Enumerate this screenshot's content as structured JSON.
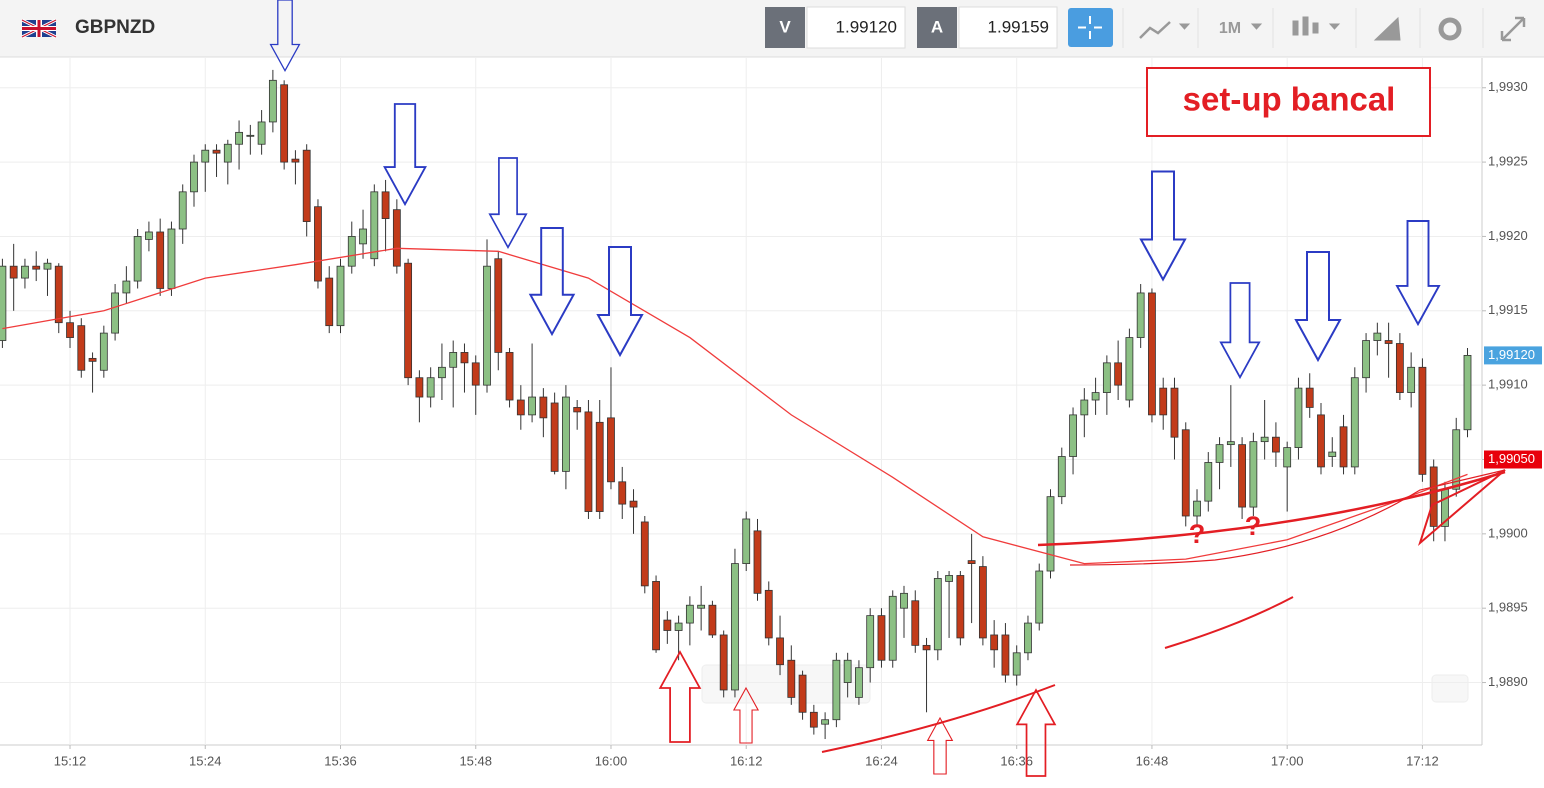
{
  "header": {
    "symbol": "GBPNZD",
    "bid_label": "V",
    "bid": "1.99120",
    "ask_label": "A",
    "ask": "1.99159",
    "timeframe": "1M"
  },
  "chart_data": {
    "type": "candlestick",
    "x": [
      "15:06",
      "15:07",
      "15:08",
      "15:09",
      "15:10",
      "15:11",
      "15:12",
      "15:13",
      "15:14",
      "15:15",
      "15:16",
      "15:17",
      "15:18",
      "15:19",
      "15:20",
      "15:21",
      "15:22",
      "15:23",
      "15:24",
      "15:25",
      "15:26",
      "15:27",
      "15:28",
      "15:29",
      "15:30",
      "15:31",
      "15:32",
      "15:33",
      "15:34",
      "15:35",
      "15:36",
      "15:37",
      "15:38",
      "15:39",
      "15:40",
      "15:41",
      "15:42",
      "15:43",
      "15:44",
      "15:45",
      "15:46",
      "15:47",
      "15:48",
      "15:49",
      "15:50",
      "15:51",
      "15:52",
      "15:53",
      "15:54",
      "15:55",
      "15:56",
      "15:57",
      "15:58",
      "15:59",
      "16:00",
      "16:01",
      "16:02",
      "16:03",
      "16:04",
      "16:05",
      "16:06",
      "16:07",
      "16:08",
      "16:09",
      "16:10",
      "16:11",
      "16:12",
      "16:13",
      "16:14",
      "16:15",
      "16:16",
      "16:17",
      "16:18",
      "16:19",
      "16:20",
      "16:21",
      "16:22",
      "16:23",
      "16:24",
      "16:25",
      "16:26",
      "16:27",
      "16:28",
      "16:29",
      "16:30",
      "16:31",
      "16:32",
      "16:33",
      "16:34",
      "16:35",
      "16:36",
      "16:37",
      "16:38",
      "16:39",
      "16:40",
      "16:41",
      "16:42",
      "16:43",
      "16:44",
      "16:45",
      "16:46",
      "16:47",
      "16:48",
      "16:49",
      "16:50",
      "16:51",
      "16:52",
      "16:53",
      "16:54",
      "16:55",
      "16:56",
      "16:57",
      "16:58",
      "16:59",
      "17:00",
      "17:01",
      "17:02",
      "17:03",
      "17:04",
      "17:05",
      "17:06",
      "17:07",
      "17:08",
      "17:09",
      "17:10",
      "17:11",
      "17:12",
      "17:13",
      "17:14",
      "17:15",
      "17:16"
    ],
    "ohlc": [
      [
        1.9913,
        1.99185,
        1.99125,
        1.9918
      ],
      [
        1.9918,
        1.99195,
        1.9915,
        1.99172
      ],
      [
        1.99172,
        1.99185,
        1.99165,
        1.9918
      ],
      [
        1.9918,
        1.9919,
        1.9917,
        1.99178
      ],
      [
        1.99178,
        1.99185,
        1.9916,
        1.99182
      ],
      [
        1.9918,
        1.99182,
        1.99135,
        1.99142
      ],
      [
        1.99142,
        1.9915,
        1.99125,
        1.99132
      ],
      [
        1.9914,
        1.99145,
        1.99105,
        1.9911
      ],
      [
        1.99118,
        1.99122,
        1.99095,
        1.99116
      ],
      [
        1.9911,
        1.9914,
        1.99105,
        1.99135
      ],
      [
        1.99135,
        1.99168,
        1.9913,
        1.99162
      ],
      [
        1.99162,
        1.9918,
        1.99155,
        1.9917
      ],
      [
        1.9917,
        1.99205,
        1.99165,
        1.992
      ],
      [
        1.99198,
        1.9921,
        1.9919,
        1.99203
      ],
      [
        1.99203,
        1.99212,
        1.9916,
        1.99165
      ],
      [
        1.99165,
        1.9921,
        1.9916,
        1.99205
      ],
      [
        1.99205,
        1.99235,
        1.99195,
        1.9923
      ],
      [
        1.9923,
        1.99255,
        1.9922,
        1.9925
      ],
      [
        1.9925,
        1.99262,
        1.9923,
        1.99258
      ],
      [
        1.99258,
        1.99262,
        1.9924,
        1.99256
      ],
      [
        1.9925,
        1.99265,
        1.99235,
        1.99262
      ],
      [
        1.99262,
        1.99278,
        1.99245,
        1.9927
      ],
      [
        1.99268,
        1.99275,
        1.99255,
        1.99268
      ],
      [
        1.99262,
        1.99285,
        1.99255,
        1.99277
      ],
      [
        1.99277,
        1.99312,
        1.9927,
        1.99305
      ],
      [
        1.99302,
        1.99305,
        1.99245,
        1.9925
      ],
      [
        1.99252,
        1.99258,
        1.99235,
        1.9925
      ],
      [
        1.99258,
        1.99262,
        1.992,
        1.9921
      ],
      [
        1.9922,
        1.99225,
        1.99165,
        1.9917
      ],
      [
        1.99172,
        1.9918,
        1.99135,
        1.9914
      ],
      [
        1.9914,
        1.99185,
        1.99135,
        1.9918
      ],
      [
        1.9918,
        1.9921,
        1.99175,
        1.992
      ],
      [
        1.99195,
        1.99218,
        1.99185,
        1.99205
      ],
      [
        1.99185,
        1.99235,
        1.9918,
        1.9923
      ],
      [
        1.9923,
        1.99238,
        1.9919,
        1.99212
      ],
      [
        1.99218,
        1.99225,
        1.99175,
        1.9918
      ],
      [
        1.99182,
        1.99185,
        1.991,
        1.99105
      ],
      [
        1.99105,
        1.9911,
        1.99075,
        1.99092
      ],
      [
        1.99092,
        1.99112,
        1.99085,
        1.99105
      ],
      [
        1.99105,
        1.99128,
        1.9909,
        1.99112
      ],
      [
        1.99112,
        1.9913,
        1.99085,
        1.99122
      ],
      [
        1.99122,
        1.99128,
        1.99095,
        1.99115
      ],
      [
        1.99115,
        1.9912,
        1.9908,
        1.991
      ],
      [
        1.991,
        1.99198,
        1.99095,
        1.9918
      ],
      [
        1.99185,
        1.9919,
        1.9911,
        1.99122
      ],
      [
        1.99122,
        1.99125,
        1.99085,
        1.9909
      ],
      [
        1.9909,
        1.991,
        1.9907,
        1.9908
      ],
      [
        1.9908,
        1.99128,
        1.99075,
        1.99092
      ],
      [
        1.99092,
        1.99098,
        1.99065,
        1.99078
      ],
      [
        1.99088,
        1.99095,
        1.9904,
        1.99042
      ],
      [
        1.99042,
        1.991,
        1.9903,
        1.99092
      ],
      [
        1.99085,
        1.9909,
        1.9907,
        1.99082
      ],
      [
        1.99082,
        1.9909,
        1.9901,
        1.99015
      ],
      [
        1.99075,
        1.9909,
        1.9901,
        1.99015
      ],
      [
        1.99078,
        1.99112,
        1.9903,
        1.99035
      ],
      [
        1.99035,
        1.99045,
        1.9901,
        1.9902
      ],
      [
        1.99022,
        1.9903,
        1.99,
        1.99018
      ],
      [
        1.99008,
        1.99012,
        1.9896,
        1.98965
      ],
      [
        1.98968,
        1.98972,
        1.9892,
        1.98922
      ],
      [
        1.98942,
        1.98948,
        1.98926,
        1.98935
      ],
      [
        1.98935,
        1.98945,
        1.98915,
        1.9894
      ],
      [
        1.9894,
        1.98958,
        1.98925,
        1.98952
      ],
      [
        1.9895,
        1.98965,
        1.98935,
        1.98952
      ],
      [
        1.98952,
        1.98955,
        1.9893,
        1.98932
      ],
      [
        1.98932,
        1.98935,
        1.9889,
        1.98895
      ],
      [
        1.98895,
        1.9899,
        1.9889,
        1.9898
      ],
      [
        1.9898,
        1.99015,
        1.98975,
        1.9901
      ],
      [
        1.99002,
        1.9901,
        1.98955,
        1.9896
      ],
      [
        1.98962,
        1.98968,
        1.98925,
        1.9893
      ],
      [
        1.9893,
        1.98945,
        1.98905,
        1.98912
      ],
      [
        1.98915,
        1.98925,
        1.98885,
        1.9889
      ],
      [
        1.98905,
        1.98908,
        1.98875,
        1.9888
      ],
      [
        1.9888,
        1.98885,
        1.98865,
        1.9887
      ],
      [
        1.98872,
        1.9888,
        1.98862,
        1.98875
      ],
      [
        1.98875,
        1.9892,
        1.9887,
        1.98915
      ],
      [
        1.989,
        1.9892,
        1.9889,
        1.98915
      ],
      [
        1.9889,
        1.98915,
        1.98885,
        1.9891
      ],
      [
        1.9891,
        1.9895,
        1.989,
        1.98945
      ],
      [
        1.98945,
        1.9895,
        1.9891,
        1.98915
      ],
      [
        1.98915,
        1.98962,
        1.9891,
        1.98958
      ],
      [
        1.9895,
        1.98965,
        1.9893,
        1.9896
      ],
      [
        1.98955,
        1.98962,
        1.9892,
        1.98925
      ],
      [
        1.98925,
        1.9893,
        1.9888,
        1.98922
      ],
      [
        1.98922,
        1.98975,
        1.98915,
        1.9897
      ],
      [
        1.98968,
        1.98975,
        1.9893,
        1.98972
      ],
      [
        1.98972,
        1.98975,
        1.98925,
        1.9893
      ],
      [
        1.98982,
        1.99,
        1.9894,
        1.9898
      ],
      [
        1.98978,
        1.98985,
        1.98925,
        1.9893
      ],
      [
        1.98932,
        1.98942,
        1.9891,
        1.98922
      ],
      [
        1.98932,
        1.9894,
        1.989,
        1.98905
      ],
      [
        1.98905,
        1.98925,
        1.98898,
        1.9892
      ],
      [
        1.9892,
        1.98945,
        1.98915,
        1.9894
      ],
      [
        1.9894,
        1.9898,
        1.98935,
        1.98975
      ],
      [
        1.98975,
        1.9903,
        1.9897,
        1.99025
      ],
      [
        1.99025,
        1.99058,
        1.9902,
        1.99052
      ],
      [
        1.99052,
        1.99085,
        1.9904,
        1.9908
      ],
      [
        1.9908,
        1.99098,
        1.99065,
        1.9909
      ],
      [
        1.9909,
        1.99105,
        1.9908,
        1.99095
      ],
      [
        1.99095,
        1.9912,
        1.9908,
        1.99115
      ],
      [
        1.99115,
        1.9913,
        1.9909,
        1.991
      ],
      [
        1.9909,
        1.99138,
        1.99085,
        1.99132
      ],
      [
        1.99132,
        1.99168,
        1.99125,
        1.99162
      ],
      [
        1.99162,
        1.99165,
        1.99075,
        1.9908
      ],
      [
        1.99098,
        1.99105,
        1.9907,
        1.9908
      ],
      [
        1.99098,
        1.99105,
        1.9905,
        1.99065
      ],
      [
        1.9907,
        1.99075,
        1.99005,
        1.99012
      ],
      [
        1.99012,
        1.9903,
        1.99005,
        1.99022
      ],
      [
        1.99022,
        1.99055,
        1.99015,
        1.99048
      ],
      [
        1.99048,
        1.99065,
        1.9903,
        1.9906
      ],
      [
        1.9906,
        1.991,
        1.99045,
        1.99062
      ],
      [
        1.9906,
        1.99065,
        1.9901,
        1.99018
      ],
      [
        1.99018,
        1.99068,
        1.99012,
        1.99062
      ],
      [
        1.99062,
        1.9909,
        1.9905,
        1.99065
      ],
      [
        1.99065,
        1.99075,
        1.99045,
        1.99055
      ],
      [
        1.99045,
        1.99062,
        1.99015,
        1.99058
      ],
      [
        1.99058,
        1.99105,
        1.9905,
        1.99098
      ],
      [
        1.99098,
        1.99108,
        1.99078,
        1.99085
      ],
      [
        1.9908,
        1.99088,
        1.9904,
        1.99045
      ],
      [
        1.99052,
        1.99065,
        1.99045,
        1.99055
      ],
      [
        1.99072,
        1.9908,
        1.9904,
        1.99045
      ],
      [
        1.99045,
        1.99112,
        1.9904,
        1.99105
      ],
      [
        1.99105,
        1.99135,
        1.99095,
        1.9913
      ],
      [
        1.9913,
        1.99142,
        1.9912,
        1.99135
      ],
      [
        1.9913,
        1.99142,
        1.99105,
        1.99128
      ],
      [
        1.99128,
        1.99135,
        1.9909,
        1.99095
      ],
      [
        1.99095,
        1.99122,
        1.99085,
        1.99112
      ],
      [
        1.99112,
        1.99118,
        1.99035,
        1.9904
      ],
      [
        1.99045,
        1.9905,
        1.98995,
        1.99005
      ],
      [
        1.99005,
        1.99035,
        1.98995,
        1.9903
      ],
      [
        1.9903,
        1.99078,
        1.99025,
        1.9907
      ],
      [
        1.9907,
        1.99125,
        1.99065,
        1.9912
      ]
    ],
    "up_color": "#8cc084",
    "down_color": "#c23b1a",
    "ma": {
      "color": "#f03c3c",
      "x": [
        "15:06",
        "15:15",
        "15:24",
        "15:32",
        "15:41",
        "15:50",
        "15:58",
        "16:07",
        "16:16",
        "16:25",
        "16:33",
        "16:42",
        "16:51",
        "17:00",
        "17:09",
        "17:16"
      ],
      "values": [
        1.99138,
        1.9915,
        1.99172,
        1.99181,
        1.99192,
        1.9919,
        1.99172,
        1.99132,
        1.9908,
        1.99038,
        1.98998,
        1.9898,
        1.98983,
        1.98996,
        1.9902,
        1.9904
      ]
    },
    "ylim": [
      1.98858,
      1.9932
    ],
    "yticks": [
      {
        "value": 1.989,
        "label": "1,9890"
      },
      {
        "value": 1.9895,
        "label": "1,9895"
      },
      {
        "value": 1.99,
        "label": "1,9900"
      },
      {
        "value": 1.9905,
        "label": "1,9905"
      },
      {
        "value": 1.991,
        "label": "1,9910"
      },
      {
        "value": 1.9915,
        "label": "1,9915"
      },
      {
        "value": 1.992,
        "label": "1,9920"
      },
      {
        "value": 1.9925,
        "label": "1,9925"
      },
      {
        "value": 1.993,
        "label": "1,9930"
      }
    ],
    "xticks": [
      "15:12",
      "15:24",
      "15:36",
      "15:48",
      "16:00",
      "16:12",
      "16:24",
      "16:36",
      "16:48",
      "17:00",
      "17:12"
    ],
    "grid": true,
    "price_labels": [
      {
        "value": 1.9912,
        "label": "1,99120",
        "color": "#4aa3df"
      },
      {
        "value": 1.9905,
        "label": "1,99050",
        "color": "#e8000b"
      }
    ],
    "annotations": {
      "setup": "set-up bancal",
      "q1": "?",
      "q2": "?"
    }
  }
}
